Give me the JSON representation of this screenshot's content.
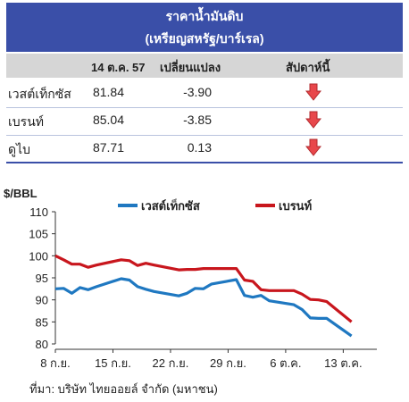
{
  "table": {
    "title": "ราคาน้ำมันดิบ",
    "subtitle": "(เหรียญสหรัฐ/บาร์เรล)",
    "col_date": "14 ต.ค. 57",
    "col_change": "เปลี่ยนแปลง",
    "col_trend": "สัปดาห์นี้",
    "rows": [
      {
        "name": "เวสต์เท็กซัส",
        "price": "81.84",
        "change": "-3.90",
        "trend": "down-arrow-icon"
      },
      {
        "name": "เบรนท์",
        "price": "85.04",
        "change": "-3.85",
        "trend": "down-arrow-icon"
      },
      {
        "name": "ดูไบ",
        "price": "87.71",
        "change": "0.13",
        "trend": "down-arrow-icon"
      }
    ],
    "arrow_color": "#e8474b",
    "header_color": "#3a4fa8"
  },
  "chart_data": {
    "type": "line",
    "ylabel": "$/BBL",
    "ylim": [
      80,
      110
    ],
    "yticks": [
      80,
      85,
      90,
      95,
      100,
      105,
      110
    ],
    "xticks": [
      "8 ก.ย.",
      "15 ก.ย.",
      "22 ก.ย.",
      "29 ก.ย.",
      "6 ต.ค.",
      "13 ต.ค."
    ],
    "x_tick_days": [
      0,
      7,
      14,
      21,
      28,
      35
    ],
    "x_range_days": [
      0,
      38
    ],
    "legend_position": "top",
    "series": [
      {
        "name": "เวสต์เท็กซัส",
        "color": "#1f78c1",
        "x": [
          0,
          1,
          2,
          3,
          4,
          5,
          8,
          9,
          10,
          11,
          12,
          15,
          16,
          17,
          18,
          19,
          22,
          23,
          24,
          25,
          26,
          29,
          30,
          31,
          32,
          33,
          36
        ],
        "y": [
          92.5,
          92.6,
          91.5,
          92.8,
          92.3,
          93.0,
          94.8,
          94.5,
          93.0,
          92.4,
          91.9,
          90.9,
          91.5,
          92.6,
          92.5,
          93.6,
          94.6,
          91.0,
          90.6,
          91.0,
          89.8,
          88.9,
          87.8,
          85.9,
          85.8,
          85.8,
          81.8
        ]
      },
      {
        "name": "เบรนท์",
        "color": "#c8161d",
        "x": [
          0,
          1,
          2,
          3,
          4,
          5,
          8,
          9,
          10,
          11,
          12,
          15,
          16,
          17,
          18,
          19,
          22,
          23,
          24,
          25,
          26,
          29,
          30,
          31,
          32,
          33,
          36
        ],
        "y": [
          100.0,
          99.1,
          98.1,
          98.1,
          97.4,
          97.9,
          99.1,
          98.9,
          97.8,
          98.3,
          97.9,
          96.8,
          96.9,
          96.9,
          97.1,
          97.1,
          97.1,
          94.5,
          94.2,
          92.3,
          92.1,
          92.1,
          91.3,
          90.1,
          90.0,
          89.6,
          85.0
        ]
      }
    ]
  },
  "source": "ที่มา: บริษัท ไทยออยล์ จำกัด (มหาชน)"
}
